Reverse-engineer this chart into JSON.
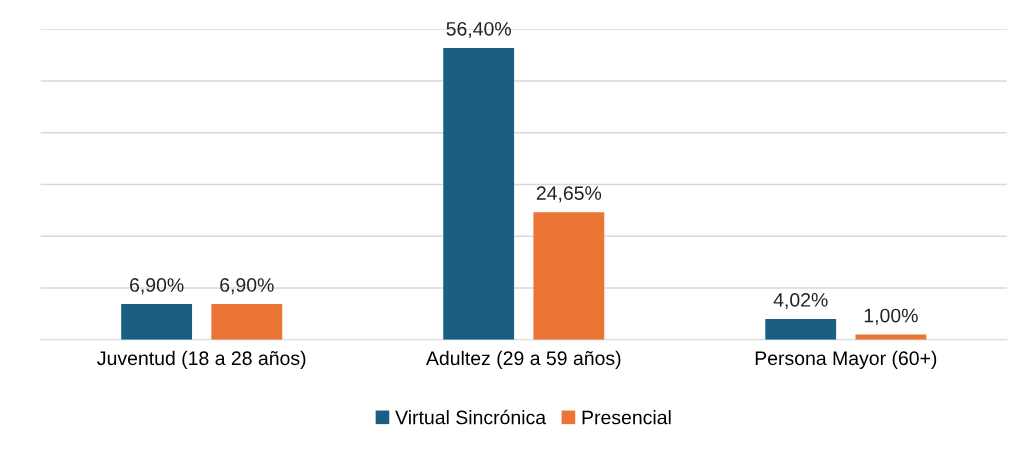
{
  "chart_data": {
    "type": "bar",
    "categories": [
      "Juventud (18 a 28 años)",
      "Adultez (29 a 59 años)",
      "Persona Mayor (60+)"
    ],
    "series": [
      {
        "name": "Virtual Sincrónica",
        "color": "#1a5f82",
        "values": [
          6.9,
          56.4,
          4.02
        ],
        "value_labels": [
          "6,90%",
          "56,40%",
          "4,02%"
        ]
      },
      {
        "name": "Presencial",
        "color": "#ec7434",
        "values": [
          6.9,
          24.65,
          1.0
        ],
        "value_labels": [
          "6,90%",
          "24,65%",
          "1,00%"
        ]
      }
    ],
    "ylim": [
      0,
      60
    ],
    "yticks": [
      {
        "value": 0,
        "label": null
      },
      {
        "value": 10,
        "label": null
      },
      {
        "value": 20,
        "label": null
      },
      {
        "value": 30,
        "label": null
      },
      {
        "value": 40,
        "label": null
      },
      {
        "value": 50,
        "label": null
      },
      {
        "value": 60,
        "label": null
      }
    ],
    "tick_labels": "x",
    "grid": "y",
    "legend": "bottom"
  }
}
